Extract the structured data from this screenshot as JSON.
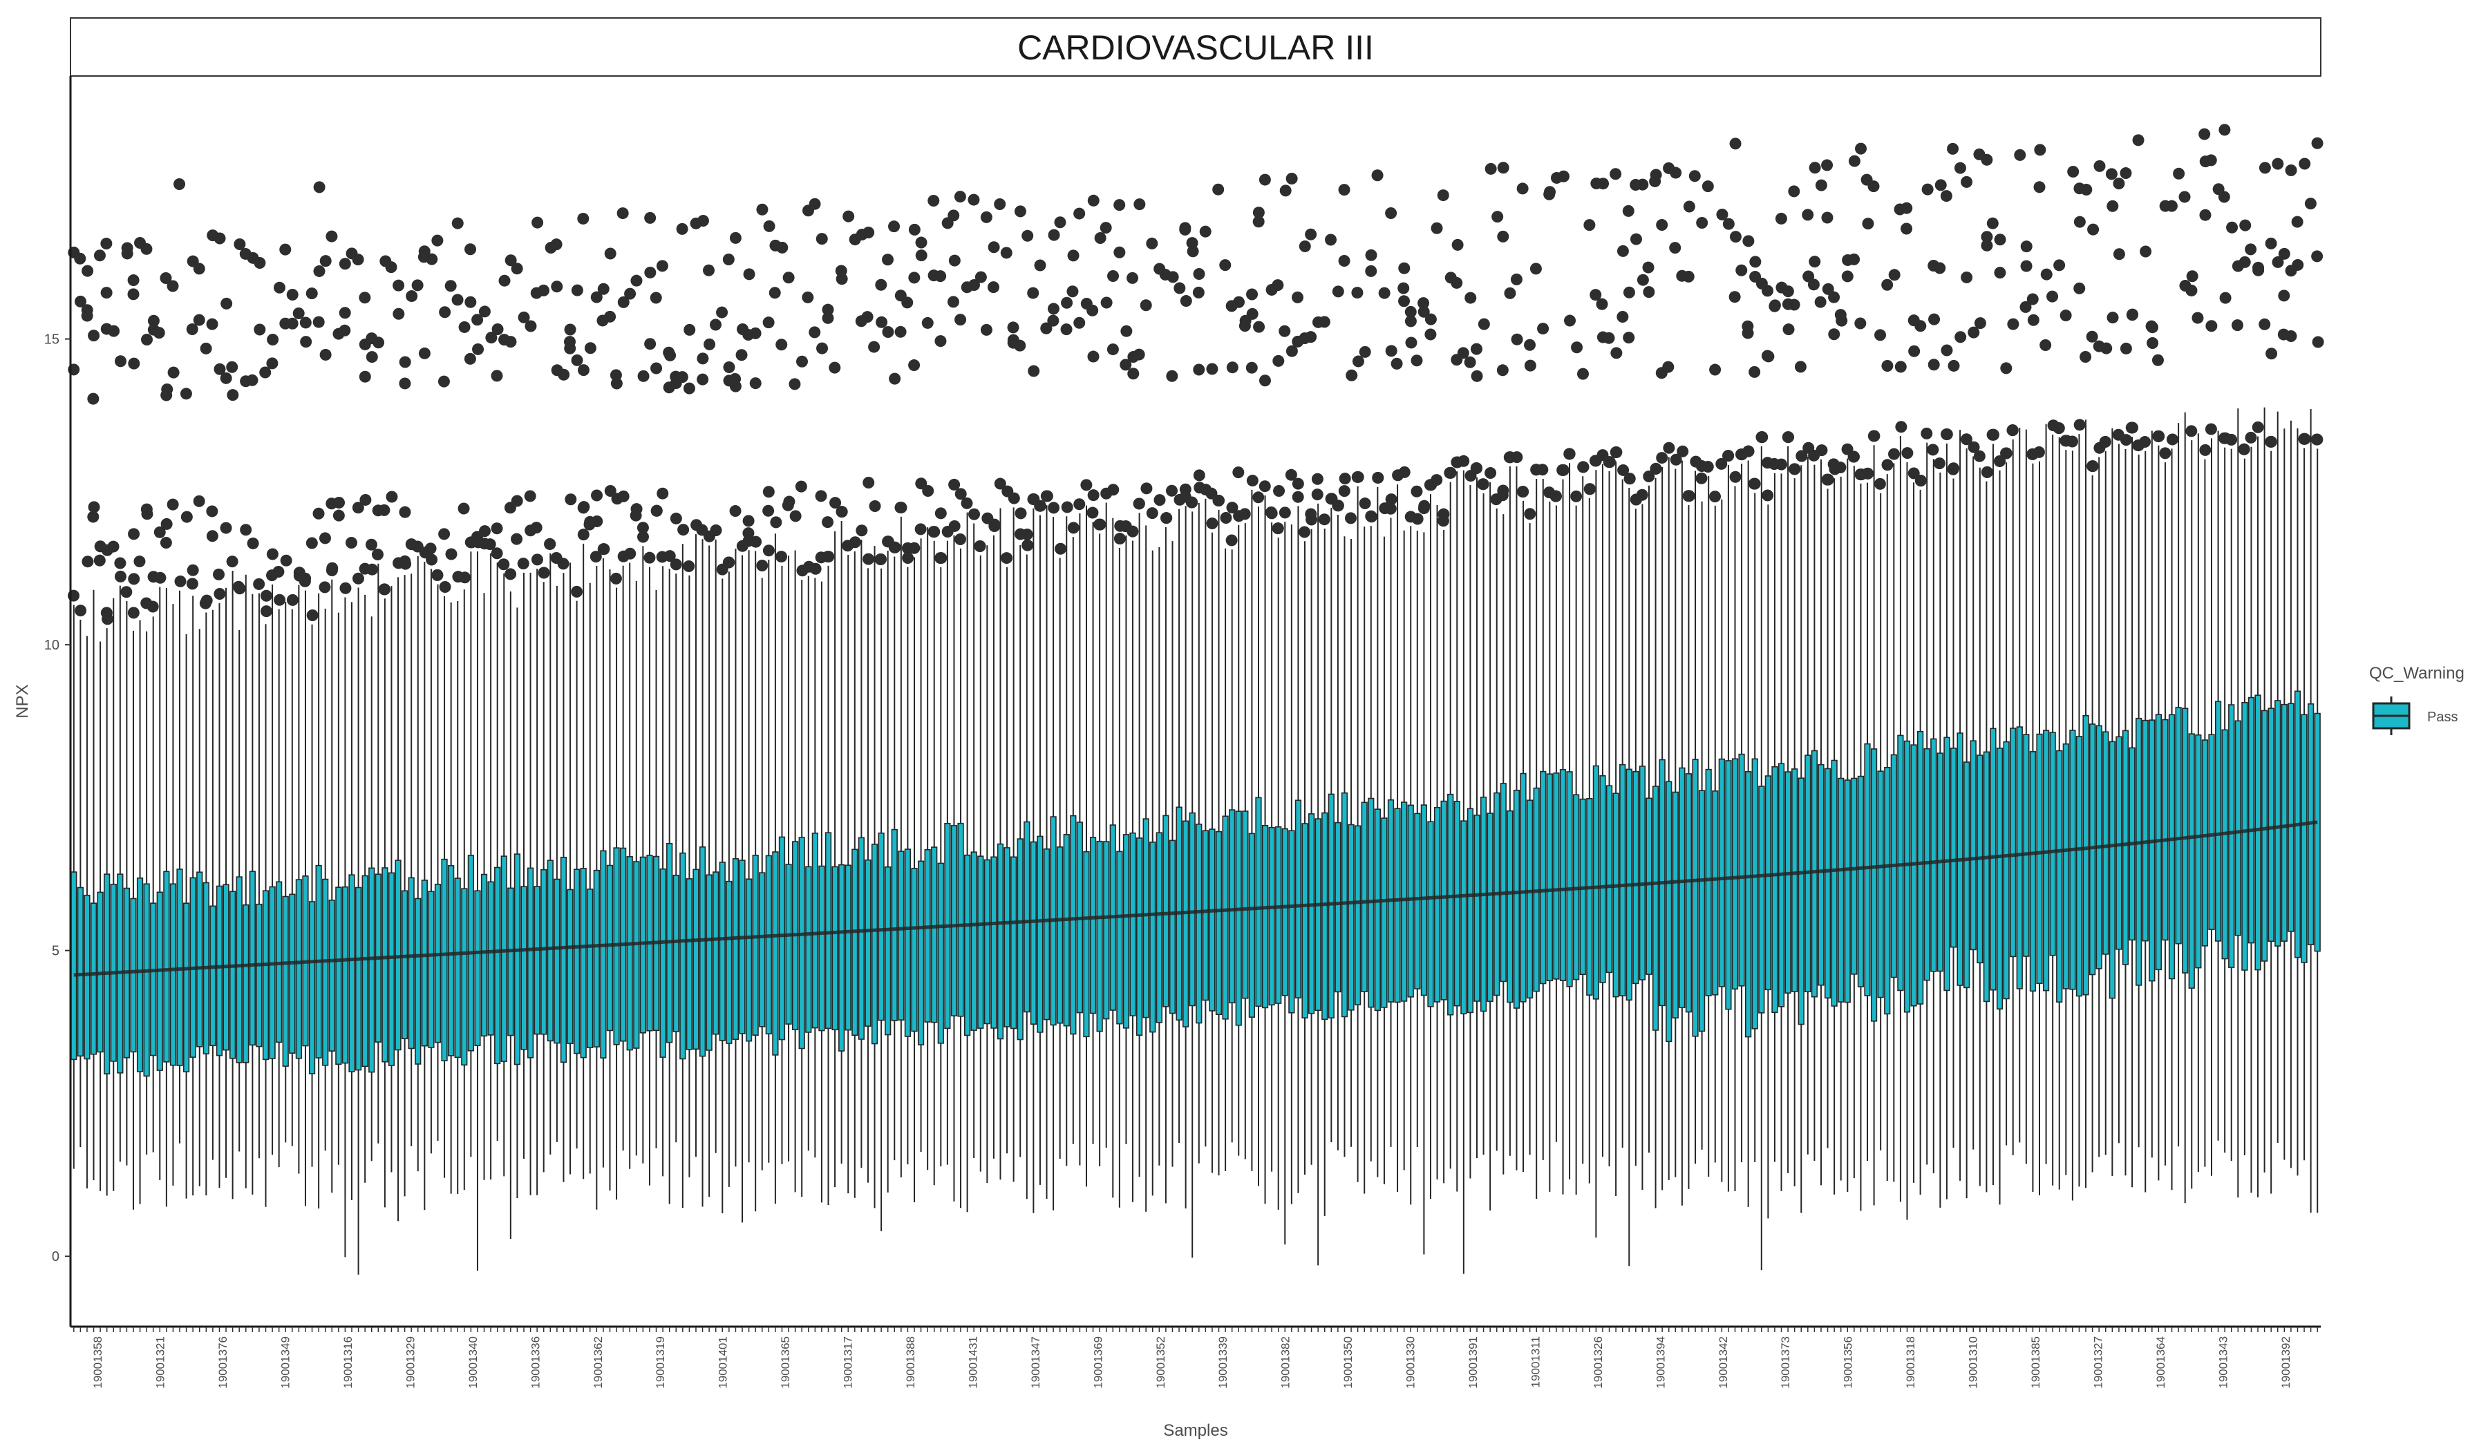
{
  "chart_data": {
    "type": "box",
    "title": "CARDIOVASCULAR III",
    "xlabel": "Samples",
    "ylabel": "NPX",
    "ylim": [
      -1.15,
      19.3
    ],
    "yticks": [
      0,
      5,
      10,
      15
    ],
    "x_sorted_by": "median NPX, ascending",
    "legend": {
      "title": "QC_Warning",
      "entries": [
        {
          "label": "Pass",
          "color": "#1bb8c9"
        }
      ],
      "position": "right"
    },
    "colors": {
      "box_fill": "#1bb8c9",
      "box_stroke": "#262626",
      "median": "#262626",
      "outlier": "#2e2e2e"
    },
    "sample_labels_visible": [
      "19001358",
      "19001321",
      "19001376",
      "19001349",
      "19001316",
      "19001329",
      "19001340",
      "19001336",
      "19001362",
      "19001319",
      "19001401",
      "19001365",
      "19001317",
      "19001388",
      "19001431",
      "19001347",
      "19001369",
      "19001352",
      "19001339",
      "19001382",
      "19001350",
      "19001330",
      "19001391",
      "19001311",
      "19001326",
      "19001394",
      "19001342",
      "19001373",
      "19001356",
      "19001318",
      "19001310",
      "19001385",
      "19001327",
      "19001364",
      "19001343",
      "19001392"
    ],
    "series": [
      {
        "name": "Pass",
        "n_samples": 340,
        "median_start": 4.6,
        "median_end": 7.1,
        "q1_start": 3.2,
        "q1_end": 5.4,
        "q3_start": 6.0,
        "q3_end": 9.0,
        "whisker_low_typical": 1.3,
        "whisker_high_start": 10.5,
        "whisker_high_end": 13.5,
        "outlier_band_low": [
          10.2,
          13.3
        ],
        "outlier_band_high": [
          14.0,
          18.7
        ]
      }
    ]
  }
}
